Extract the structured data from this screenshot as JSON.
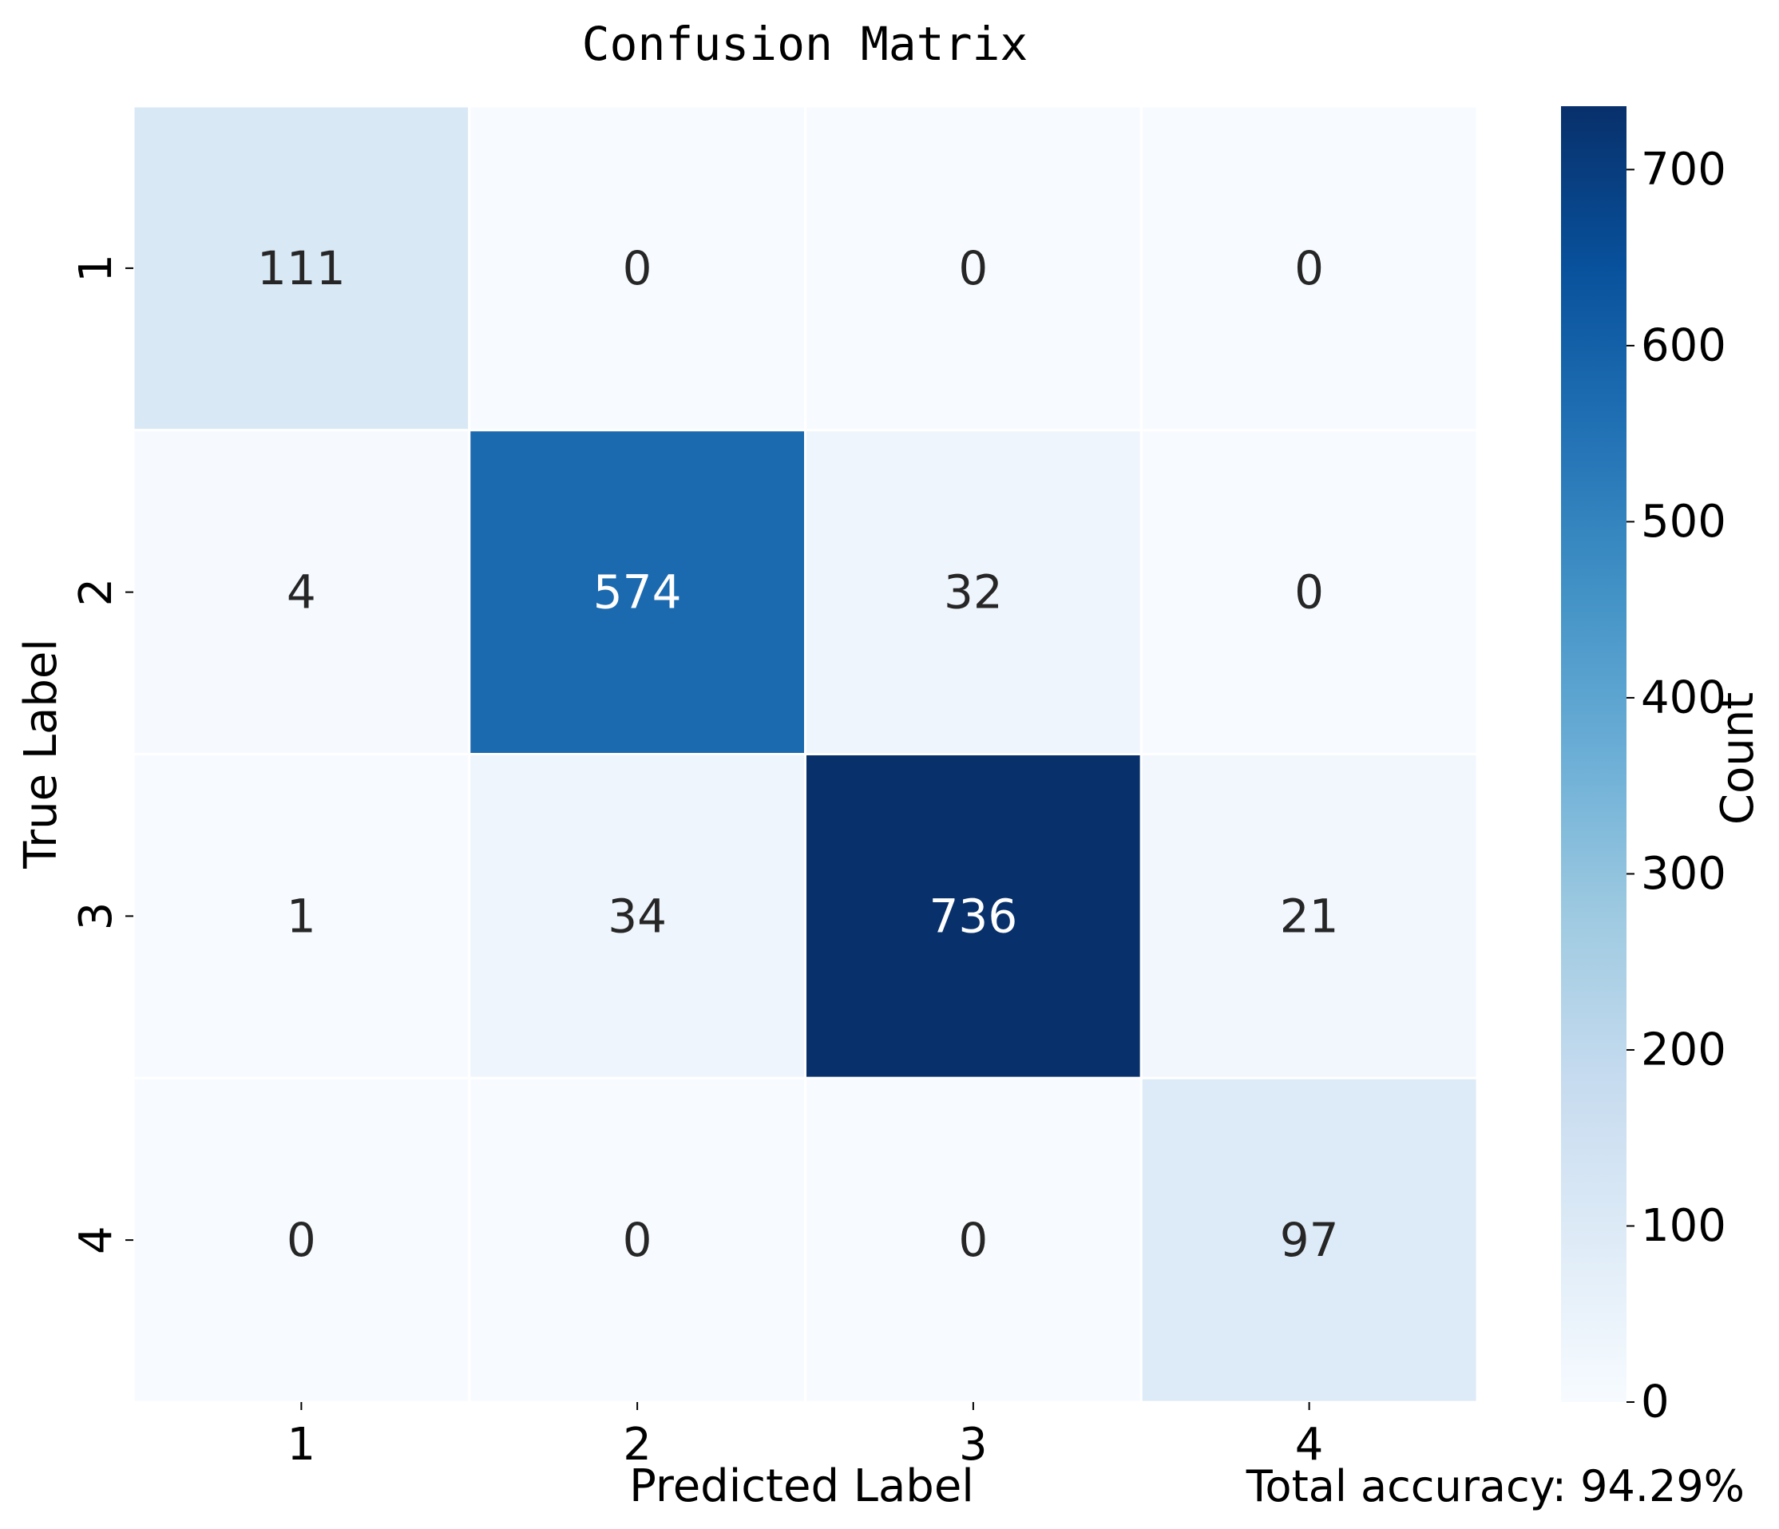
{
  "chart_data": {
    "type": "heatmap",
    "title": "Confusion Matrix",
    "xlabel": "Predicted Label",
    "ylabel": "True Label",
    "x_categories": [
      "1",
      "2",
      "3",
      "4"
    ],
    "y_categories": [
      "1",
      "2",
      "3",
      "4"
    ],
    "matrix": [
      [
        111,
        0,
        0,
        0
      ],
      [
        4,
        574,
        32,
        0
      ],
      [
        1,
        34,
        736,
        21
      ],
      [
        0,
        0,
        0,
        97
      ]
    ],
    "colorbar": {
      "label": "Count",
      "colormap": "Blues",
      "range": [
        0,
        736
      ],
      "ticks": [
        0,
        100,
        200,
        300,
        400,
        500,
        600,
        700
      ]
    },
    "annotation": "Total accuracy: 94.29%"
  }
}
